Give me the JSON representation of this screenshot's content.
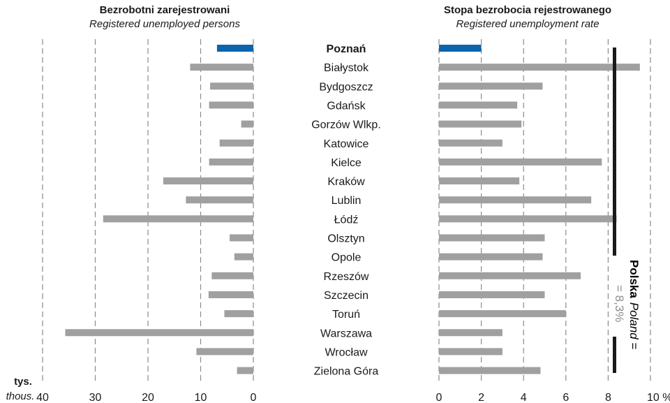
{
  "chart_data": [
    {
      "type": "bar",
      "orientation": "horizontal",
      "title": "Bezrobotni zarejestrowani",
      "subtitle": "Registered unemployed persons",
      "unit_label": "tys.",
      "unit_label_en": "thous.",
      "xlim": [
        40,
        0
      ],
      "ticks": [
        "40",
        "30",
        "20",
        "10",
        "0"
      ],
      "grid": "vertical dashed",
      "categories": [
        "Poznań",
        "Białystok",
        "Bydgoszcz",
        "Gdańsk",
        "Gorzów Wlkp.",
        "Katowice",
        "Kielce",
        "Kraków",
        "Lublin",
        "Łódź",
        "Olsztyn",
        "Opole",
        "Rzeszów",
        "Szczecin",
        "Toruń",
        "Warszawa",
        "Wrocław",
        "Zielona Góra"
      ],
      "values": [
        6.9,
        12.0,
        8.2,
        8.4,
        2.3,
        6.4,
        8.4,
        17.1,
        12.8,
        28.5,
        4.5,
        3.6,
        7.9,
        8.5,
        5.5,
        35.7,
        10.8,
        3.1
      ],
      "highlight": "Poznań"
    },
    {
      "type": "bar",
      "orientation": "horizontal",
      "title": "Stopa bezrobocia rejestrowanego",
      "subtitle": "Registered unemployment rate",
      "xlim": [
        0,
        10
      ],
      "ticks": [
        "0",
        "2",
        "4",
        "6",
        "8",
        "10 %"
      ],
      "grid": "vertical dashed",
      "categories": [
        "Poznań",
        "Białystok",
        "Bydgoszcz",
        "Gdańsk",
        "Gorzów Wlkp.",
        "Katowice",
        "Kielce",
        "Kraków",
        "Lublin",
        "Łódź",
        "Olsztyn",
        "Opole",
        "Rzeszów",
        "Szczecin",
        "Toruń",
        "Warszawa",
        "Wrocław",
        "Zielona Góra"
      ],
      "values": [
        2.0,
        9.5,
        4.9,
        3.7,
        3.9,
        3.0,
        7.7,
        3.8,
        7.2,
        8.4,
        5.0,
        4.9,
        6.7,
        5.0,
        6.0,
        3.0,
        3.0,
        4.8
      ],
      "highlight": "Poznań",
      "reference": {
        "value": 8.3,
        "label_bold": "Polska",
        "label_italic": "Poland",
        "label_suffix": " =",
        "label_value": "= 8,3%"
      }
    }
  ],
  "colors": {
    "highlight": "#0a64ae",
    "bar": "#a0a0a0",
    "grid": "#8a8a8a",
    "reference": "#1a1a1a",
    "reference_value": "#8c8c8c"
  }
}
